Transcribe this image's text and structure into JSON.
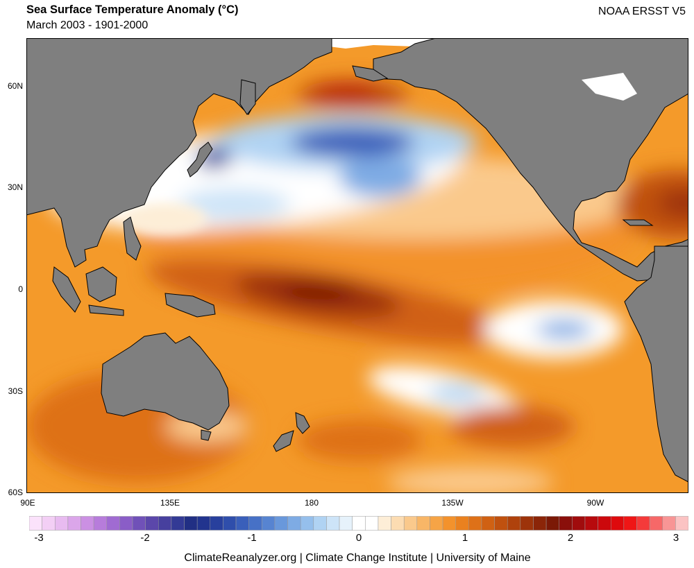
{
  "header": {
    "title": "Sea Surface Temperature Anomaly (°C)",
    "subtitle": "March 2003 - 1901-2000",
    "source": "NOAA ERSST V5"
  },
  "map": {
    "lat_labels": [
      "60N",
      "30N",
      "0",
      "30S",
      "60S"
    ],
    "lon_labels": [
      "90E",
      "135E",
      "180",
      "135W",
      "90W"
    ],
    "colors": {
      "land": "#7f7f7f",
      "ocean_base": "#f49a2a",
      "coast": "#000000"
    }
  },
  "colorbar": {
    "tick_labels": [
      "-3",
      "-2",
      "-1",
      "0",
      "1",
      "2",
      "3"
    ],
    "colors": [
      "#fbe2fb",
      "#f3cff5",
      "#e8bbf0",
      "#dba6ea",
      "#cb90e3",
      "#b77cdb",
      "#a06bd2",
      "#8a5dc7",
      "#7051b8",
      "#5b47aa",
      "#47409e",
      "#333a95",
      "#212f84",
      "#22348e",
      "#28409d",
      "#2f4eab",
      "#3a5fba",
      "#4771c6",
      "#5784d1",
      "#6998db",
      "#7eabe4",
      "#95bfec",
      "#b0d3f3",
      "#cde4f8",
      "#e6f2fb",
      "#ffffff",
      "#ffffff",
      "#fdeed7",
      "#fcdcb2",
      "#fac98c",
      "#f8b667",
      "#f6a446",
      "#f3922c",
      "#ea811f",
      "#de7118",
      "#d06113",
      "#c0510f",
      "#af420c",
      "#9d330a",
      "#8b2508",
      "#7b1906",
      "#8a0f0b",
      "#a00c0d",
      "#b70a0d",
      "#cc080c",
      "#de0a0d",
      "#ef1616",
      "#f43a3a",
      "#f66868",
      "#f89595",
      "#fbc3c3"
    ]
  },
  "footer": {
    "text": "ClimateReanalyzer.org | Climate Change Institute | University of Maine"
  }
}
